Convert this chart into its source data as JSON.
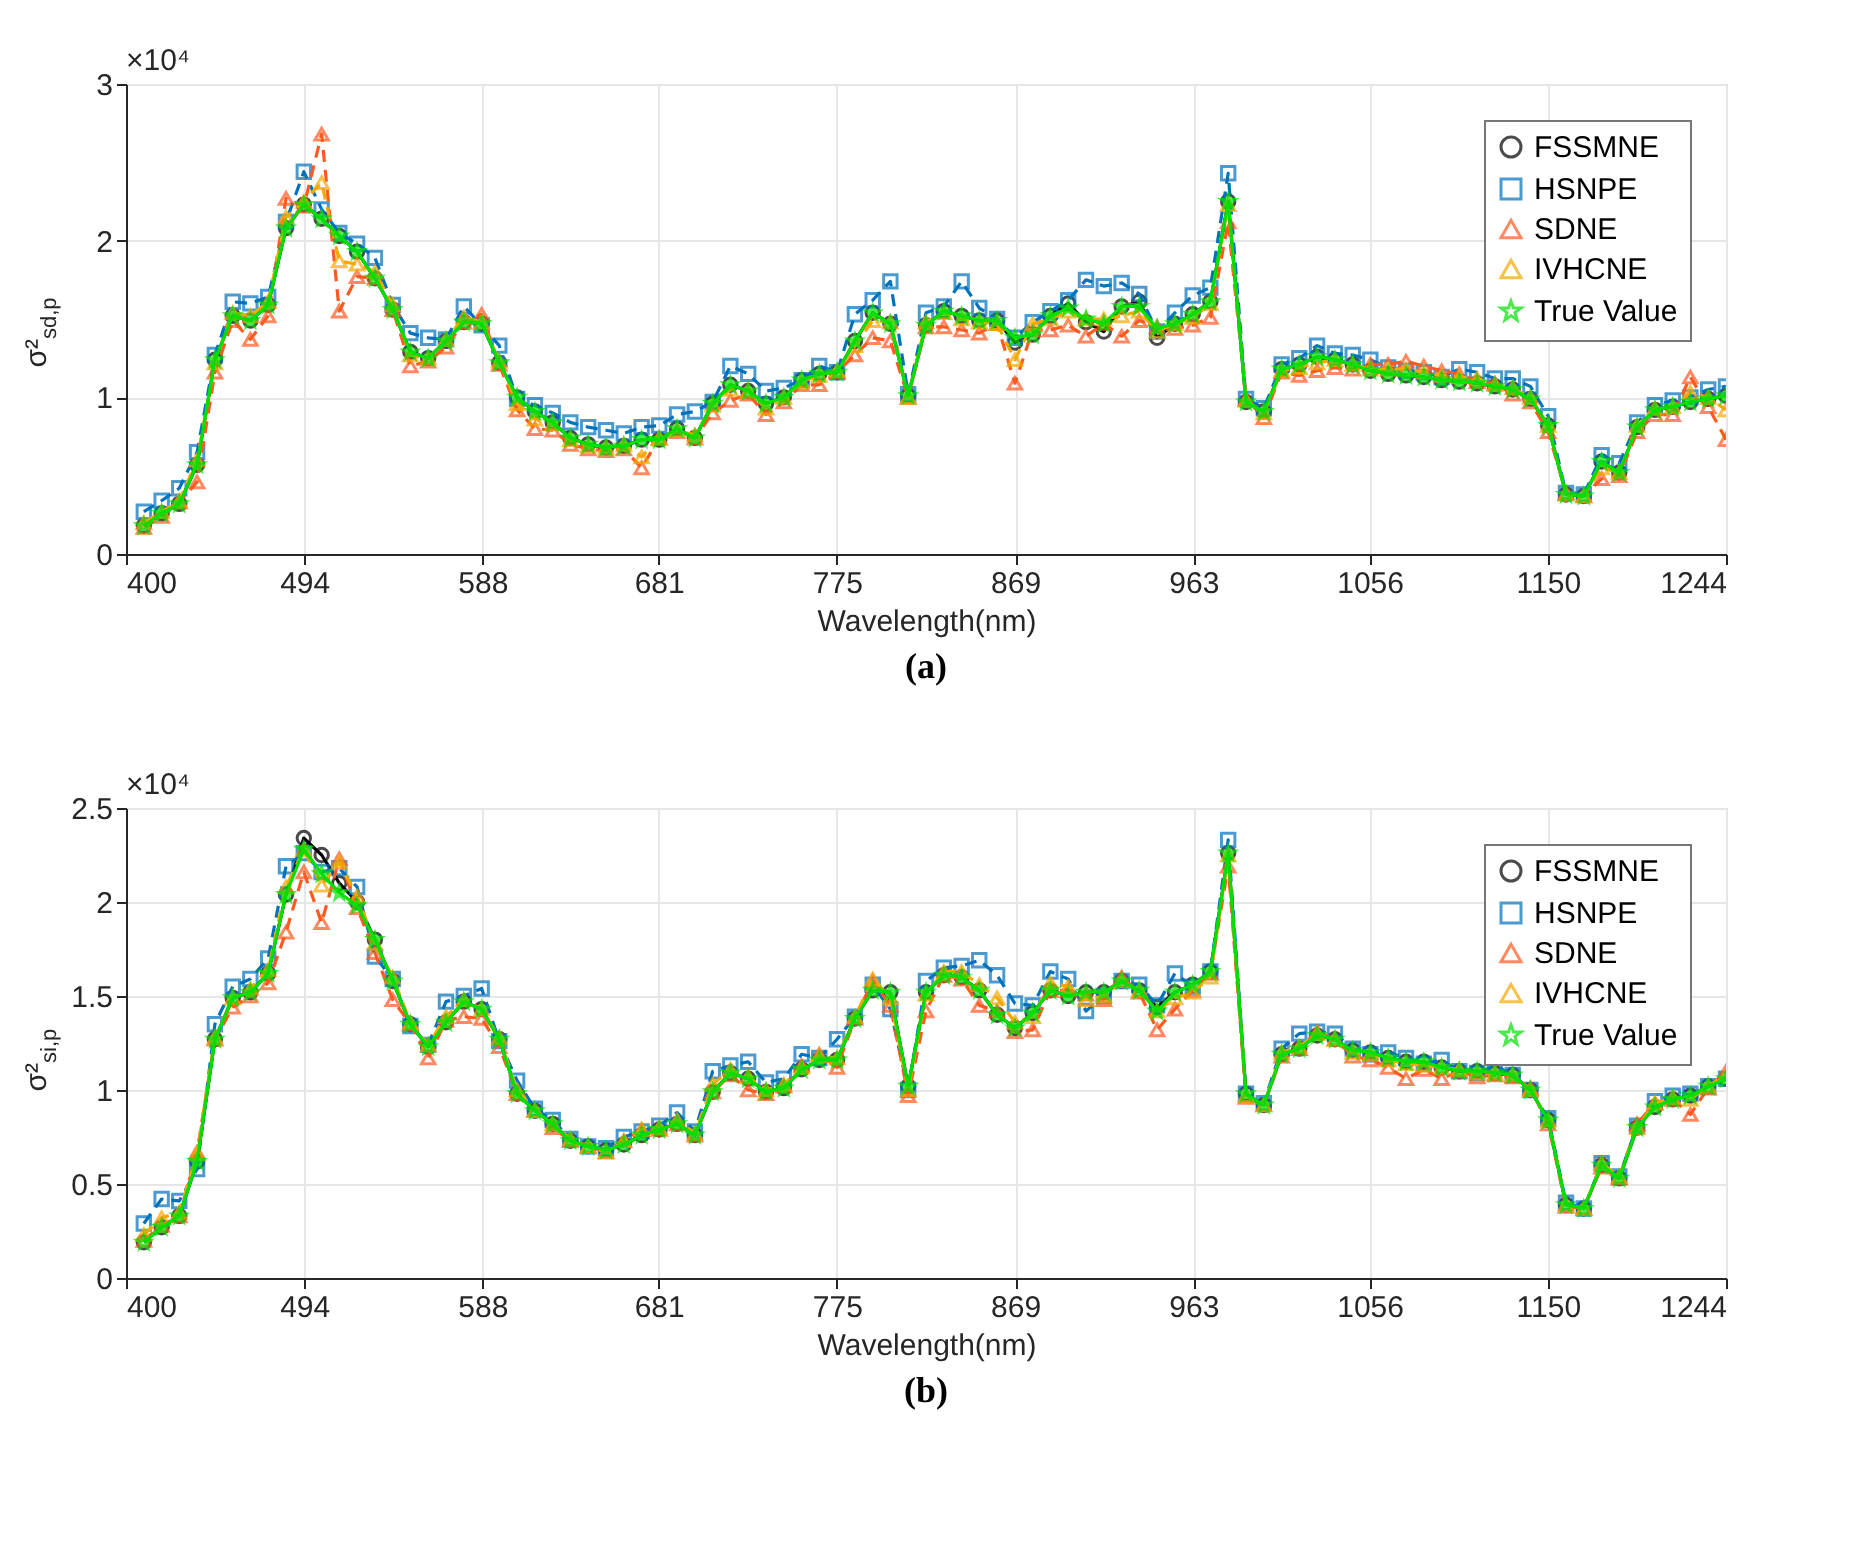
{
  "chart_data": [
    {
      "type": "line",
      "xlabel": "Wavelength(nm)",
      "ylabel": "σ²$_{sd,p}$",
      "annotations": [
        "×10⁴",
        "(a)"
      ],
      "xlim": [
        400,
        1244
      ],
      "xticks": [
        400,
        494,
        588,
        681,
        775,
        869,
        963,
        1056,
        1150,
        1244
      ],
      "ylim": [
        0,
        3
      ],
      "yticks": [
        0,
        1,
        2,
        3
      ],
      "grid": true,
      "legend": "top right",
      "x": [
        409.4,
        418.8,
        428.1,
        437.5,
        446.9,
        456.3,
        465.6,
        475.0,
        484.4,
        493.8,
        503.2,
        512.5,
        521.9,
        531.3,
        540.7,
        550.0,
        559.4,
        568.8,
        578.2,
        587.6,
        596.9,
        606.3,
        615.7,
        625.1,
        634.4,
        643.8,
        653.2,
        662.6,
        672.0,
        681.3,
        690.7,
        700.1,
        709.5,
        718.8,
        728.2,
        737.6,
        747.0,
        756.4,
        765.7,
        775.1,
        784.5,
        793.9,
        803.2,
        812.6,
        822.0,
        831.4,
        840.8,
        850.1,
        859.5,
        868.9,
        878.3,
        887.6,
        897.0,
        906.4,
        915.8,
        925.2,
        934.5,
        943.9,
        953.3,
        962.7,
        972.0,
        981.4,
        990.8,
        1000.2,
        1009.6,
        1018.9,
        1028.3,
        1037.7,
        1047.1,
        1056.4,
        1065.8,
        1075.2,
        1084.6,
        1094.0,
        1103.3,
        1112.7,
        1122.1,
        1131.5,
        1140.8,
        1150.2,
        1159.6,
        1169.0,
        1178.4,
        1187.7,
        1197.1,
        1206.5,
        1215.9,
        1225.2,
        1234.6,
        1244.0
      ],
      "series": [
        {
          "name": "FSSMNE",
          "color": "#000000",
          "marker": "circle",
          "line_style": "solid",
          "values": [
            0.18,
            0.26,
            0.32,
            0.57,
            1.24,
            1.52,
            1.49,
            1.59,
            2.08,
            2.23,
            2.14,
            2.03,
            1.93,
            1.76,
            1.56,
            1.29,
            1.25,
            1.36,
            1.48,
            1.47,
            1.22,
            1.0,
            0.91,
            0.84,
            0.74,
            0.7,
            0.68,
            0.69,
            0.73,
            0.73,
            0.8,
            0.74,
            0.96,
            1.08,
            1.04,
            0.96,
            1.0,
            1.11,
            1.15,
            1.16,
            1.36,
            1.54,
            1.47,
            1.01,
            1.46,
            1.55,
            1.52,
            1.49,
            1.49,
            1.35,
            1.4,
            1.52,
            1.6,
            1.48,
            1.42,
            1.58,
            1.61,
            1.38,
            1.47,
            1.53,
            1.61,
            2.25,
            0.97,
            0.91,
            1.18,
            1.21,
            1.26,
            1.24,
            1.21,
            1.17,
            1.15,
            1.14,
            1.13,
            1.11,
            1.1,
            1.09,
            1.07,
            1.05,
            0.99,
            0.82,
            0.38,
            0.37,
            0.59,
            0.52,
            0.81,
            0.92,
            0.94,
            0.97,
            0.99,
            1.01
          ]
        },
        {
          "name": "HSNPE",
          "color": "#0072bd",
          "marker": "square",
          "line_style": "dashed",
          "values": [
            0.27,
            0.34,
            0.42,
            0.65,
            1.27,
            1.61,
            1.6,
            1.64,
            2.12,
            2.44,
            2.2,
            2.05,
            1.98,
            1.89,
            1.59,
            1.41,
            1.38,
            1.37,
            1.58,
            1.46,
            1.33,
            0.99,
            0.95,
            0.9,
            0.84,
            0.81,
            0.79,
            0.77,
            0.81,
            0.82,
            0.89,
            0.91,
            0.97,
            1.2,
            1.15,
            1.04,
            1.06,
            1.11,
            1.2,
            1.16,
            1.53,
            1.62,
            1.74,
            1.02,
            1.54,
            1.58,
            1.74,
            1.57,
            1.5,
            1.38,
            1.48,
            1.55,
            1.62,
            1.75,
            1.71,
            1.73,
            1.66,
            1.42,
            1.54,
            1.65,
            1.7,
            2.43,
            0.99,
            0.93,
            1.21,
            1.25,
            1.33,
            1.28,
            1.27,
            1.24,
            1.19,
            1.17,
            1.16,
            1.13,
            1.18,
            1.16,
            1.12,
            1.12,
            1.07,
            0.88,
            0.39,
            0.38,
            0.63,
            0.58,
            0.84,
            0.95,
            0.98,
            1.0,
            1.05,
            1.07
          ]
        },
        {
          "name": "SDNE",
          "color": "#ff5a1f",
          "marker": "triangle",
          "line_style": "dashed",
          "values": [
            0.17,
            0.24,
            0.33,
            0.46,
            1.16,
            1.49,
            1.37,
            1.52,
            2.27,
            2.22,
            2.68,
            1.55,
            1.77,
            1.76,
            1.56,
            1.2,
            1.23,
            1.32,
            1.48,
            1.53,
            1.21,
            0.92,
            0.8,
            0.79,
            0.7,
            0.67,
            0.66,
            0.67,
            0.55,
            0.74,
            0.78,
            0.74,
            0.9,
            0.98,
            1.02,
            0.89,
            0.97,
            1.08,
            1.08,
            1.16,
            1.27,
            1.38,
            1.36,
            1.0,
            1.45,
            1.45,
            1.43,
            1.41,
            1.47,
            1.09,
            1.43,
            1.43,
            1.46,
            1.39,
            1.47,
            1.39,
            1.49,
            1.45,
            1.44,
            1.46,
            1.51,
            2.12,
            0.99,
            0.87,
            1.16,
            1.14,
            1.17,
            1.19,
            1.18,
            1.21,
            1.21,
            1.23,
            1.2,
            1.17,
            1.15,
            1.1,
            1.09,
            1.02,
            0.97,
            0.78,
            0.39,
            0.37,
            0.48,
            0.5,
            0.78,
            0.89,
            0.89,
            1.13,
            0.94,
            0.73
          ]
        },
        {
          "name": "IVHCNE",
          "color": "#f5a800",
          "marker": "triangle",
          "line_style": "dashed",
          "values": [
            0.2,
            0.27,
            0.34,
            0.6,
            1.22,
            1.54,
            1.52,
            1.61,
            2.15,
            2.25,
            2.37,
            1.87,
            1.85,
            1.8,
            1.59,
            1.27,
            1.25,
            1.37,
            1.51,
            1.48,
            1.23,
            0.96,
            0.86,
            0.83,
            0.73,
            0.69,
            0.68,
            0.7,
            0.62,
            0.74,
            0.79,
            0.76,
            0.95,
            1.05,
            1.04,
            0.93,
            1.0,
            1.1,
            1.14,
            1.17,
            1.33,
            1.49,
            1.48,
            1.0,
            1.48,
            1.54,
            1.5,
            1.48,
            1.47,
            1.24,
            1.47,
            1.5,
            1.55,
            1.5,
            1.5,
            1.52,
            1.55,
            1.42,
            1.47,
            1.51,
            1.6,
            2.23,
            0.98,
            0.9,
            1.17,
            1.19,
            1.22,
            1.24,
            1.21,
            1.18,
            1.18,
            1.18,
            1.16,
            1.14,
            1.13,
            1.12,
            1.08,
            1.06,
            1.0,
            0.82,
            0.38,
            0.37,
            0.55,
            0.52,
            0.82,
            0.93,
            0.94,
            1.03,
            1.0,
            0.92
          ]
        },
        {
          "name": "True Value",
          "color": "#00e000",
          "marker": "star",
          "line_style": "solid",
          "values": [
            0.18,
            0.26,
            0.32,
            0.57,
            1.24,
            1.52,
            1.49,
            1.59,
            2.08,
            2.23,
            2.14,
            2.03,
            1.93,
            1.76,
            1.56,
            1.29,
            1.25,
            1.36,
            1.48,
            1.47,
            1.22,
            1.0,
            0.91,
            0.84,
            0.74,
            0.7,
            0.68,
            0.69,
            0.73,
            0.73,
            0.8,
            0.74,
            0.96,
            1.08,
            1.04,
            0.96,
            1.0,
            1.11,
            1.15,
            1.16,
            1.36,
            1.54,
            1.47,
            1.01,
            1.46,
            1.55,
            1.52,
            1.49,
            1.49,
            1.38,
            1.4,
            1.52,
            1.57,
            1.5,
            1.47,
            1.58,
            1.58,
            1.44,
            1.47,
            1.53,
            1.61,
            2.25,
            0.97,
            0.91,
            1.18,
            1.21,
            1.26,
            1.24,
            1.21,
            1.17,
            1.15,
            1.14,
            1.13,
            1.11,
            1.1,
            1.09,
            1.07,
            1.05,
            0.99,
            0.82,
            0.38,
            0.37,
            0.59,
            0.52,
            0.81,
            0.92,
            0.94,
            0.97,
            0.99,
            1.01
          ]
        }
      ]
    },
    {
      "type": "line",
      "xlabel": "Wavelength(nm)",
      "ylabel": "σ²$_{si,p}$",
      "annotations": [
        "×10⁴",
        "(b)"
      ],
      "xlim": [
        400,
        1244
      ],
      "xticks": [
        400,
        494,
        588,
        681,
        775,
        869,
        963,
        1056,
        1150,
        1244
      ],
      "ylim": [
        0,
        2.5
      ],
      "yticks": [
        0,
        0.5,
        1,
        1.5,
        2,
        2.5
      ],
      "grid": true,
      "legend": "top right",
      "x": [
        409.4,
        418.8,
        428.1,
        437.5,
        446.9,
        456.3,
        465.6,
        475.0,
        484.4,
        493.8,
        503.2,
        512.5,
        521.9,
        531.3,
        540.7,
        550.0,
        559.4,
        568.8,
        578.2,
        587.6,
        596.9,
        606.3,
        615.7,
        625.1,
        634.4,
        643.8,
        653.2,
        662.6,
        672.0,
        681.3,
        690.7,
        700.1,
        709.5,
        718.8,
        728.2,
        737.6,
        747.0,
        756.4,
        765.7,
        775.1,
        784.5,
        793.9,
        803.2,
        812.6,
        822.0,
        831.4,
        840.8,
        850.1,
        859.5,
        868.9,
        878.3,
        887.6,
        897.0,
        906.4,
        915.8,
        925.2,
        934.5,
        943.9,
        953.3,
        962.7,
        972.0,
        981.4,
        990.8,
        1000.2,
        1009.6,
        1018.9,
        1028.3,
        1037.7,
        1047.1,
        1056.4,
        1065.8,
        1075.2,
        1084.6,
        1094.0,
        1103.3,
        1112.7,
        1122.1,
        1131.5,
        1140.8,
        1150.2,
        1159.6,
        1169.0,
        1178.4,
        1187.7,
        1197.1,
        1206.5,
        1215.9,
        1225.2,
        1234.6,
        1244.0
      ],
      "series": [
        {
          "name": "FSSMNE",
          "color": "#000000",
          "marker": "circle",
          "line_style": "solid",
          "values": [
            0.19,
            0.27,
            0.33,
            0.62,
            1.27,
            1.49,
            1.52,
            1.62,
            2.04,
            2.34,
            2.25,
            2.1,
            2.0,
            1.8,
            1.58,
            1.35,
            1.23,
            1.36,
            1.47,
            1.43,
            1.27,
            0.98,
            0.89,
            0.82,
            0.73,
            0.7,
            0.68,
            0.71,
            0.76,
            0.79,
            0.82,
            0.76,
            0.99,
            1.09,
            1.06,
            0.99,
            1.01,
            1.11,
            1.16,
            1.16,
            1.38,
            1.53,
            1.52,
            1.02,
            1.52,
            1.61,
            1.6,
            1.53,
            1.4,
            1.33,
            1.41,
            1.53,
            1.5,
            1.52,
            1.52,
            1.58,
            1.53,
            1.44,
            1.52,
            1.56,
            1.63,
            2.26,
            0.98,
            0.92,
            1.19,
            1.22,
            1.29,
            1.27,
            1.21,
            1.2,
            1.17,
            1.15,
            1.15,
            1.12,
            1.1,
            1.1,
            1.09,
            1.08,
            1.0,
            0.84,
            0.39,
            0.37,
            0.6,
            0.53,
            0.8,
            0.91,
            0.95,
            0.97,
            1.02,
            1.06
          ]
        },
        {
          "name": "HSNPE",
          "color": "#0072bd",
          "marker": "square",
          "line_style": "dashed",
          "values": [
            0.29,
            0.42,
            0.41,
            0.58,
            1.35,
            1.55,
            1.59,
            1.7,
            2.19,
            2.26,
            2.16,
            2.18,
            2.08,
            1.71,
            1.59,
            1.34,
            1.24,
            1.47,
            1.5,
            1.54,
            1.26,
            1.05,
            0.9,
            0.84,
            0.74,
            0.7,
            0.69,
            0.75,
            0.78,
            0.81,
            0.88,
            0.78,
            1.1,
            1.13,
            1.15,
            1.04,
            1.06,
            1.19,
            1.17,
            1.27,
            1.39,
            1.56,
            1.43,
            1.0,
            1.58,
            1.65,
            1.66,
            1.69,
            1.61,
            1.46,
            1.45,
            1.63,
            1.59,
            1.42,
            1.5,
            1.58,
            1.56,
            1.45,
            1.62,
            1.55,
            1.63,
            2.33,
            0.98,
            0.93,
            1.22,
            1.3,
            1.31,
            1.3,
            1.22,
            1.19,
            1.2,
            1.17,
            1.14,
            1.16,
            1.1,
            1.09,
            1.13,
            1.08,
            1.0,
            0.85,
            0.4,
            0.37,
            0.61,
            0.54,
            0.81,
            0.94,
            0.97,
            0.98,
            1.02,
            1.06
          ]
        },
        {
          "name": "SDNE",
          "color": "#ff5a1f",
          "marker": "triangle",
          "line_style": "dashed",
          "values": [
            0.2,
            0.28,
            0.33,
            0.67,
            1.27,
            1.44,
            1.5,
            1.57,
            1.84,
            2.16,
            1.89,
            2.23,
            1.97,
            1.73,
            1.48,
            1.35,
            1.17,
            1.37,
            1.39,
            1.38,
            1.23,
            0.98,
            0.89,
            0.8,
            0.73,
            0.7,
            0.67,
            0.73,
            0.79,
            0.79,
            0.82,
            0.76,
            0.99,
            1.08,
            1.0,
            0.98,
            1.02,
            1.13,
            1.19,
            1.12,
            1.38,
            1.58,
            1.45,
            0.97,
            1.42,
            1.61,
            1.59,
            1.45,
            1.42,
            1.31,
            1.32,
            1.53,
            1.53,
            1.51,
            1.48,
            1.6,
            1.52,
            1.32,
            1.43,
            1.53,
            1.62,
            2.19,
            0.96,
            0.92,
            1.18,
            1.22,
            1.31,
            1.27,
            1.18,
            1.16,
            1.12,
            1.06,
            1.11,
            1.06,
            1.1,
            1.07,
            1.08,
            1.07,
            1.01,
            0.82,
            0.38,
            0.37,
            0.59,
            0.53,
            0.82,
            0.93,
            0.95,
            0.87,
            1.01,
            1.1
          ]
        },
        {
          "name": "IVHCNE",
          "color": "#f5a800",
          "marker": "triangle",
          "line_style": "dashed",
          "values": [
            0.23,
            0.32,
            0.35,
            0.66,
            1.28,
            1.49,
            1.54,
            1.64,
            2.08,
            2.28,
            2.09,
            2.21,
            2.03,
            1.78,
            1.6,
            1.36,
            1.24,
            1.39,
            1.48,
            1.43,
            1.28,
            1.0,
            0.89,
            0.82,
            0.74,
            0.7,
            0.67,
            0.73,
            0.79,
            0.8,
            0.84,
            0.77,
            1.03,
            1.11,
            1.07,
            1.0,
            1.03,
            1.12,
            1.18,
            1.17,
            1.39,
            1.59,
            1.49,
            1.0,
            1.51,
            1.63,
            1.63,
            1.56,
            1.49,
            1.36,
            1.39,
            1.57,
            1.55,
            1.48,
            1.5,
            1.58,
            1.53,
            1.42,
            1.49,
            1.52,
            1.6,
            2.25,
            0.97,
            0.92,
            1.2,
            1.23,
            1.3,
            1.27,
            1.2,
            1.19,
            1.16,
            1.14,
            1.13,
            1.12,
            1.11,
            1.09,
            1.09,
            1.08,
            1.0,
            0.84,
            0.39,
            0.37,
            0.61,
            0.54,
            0.8,
            0.93,
            0.96,
            0.95,
            1.02,
            1.08
          ]
        },
        {
          "name": "True Value",
          "color": "#00e000",
          "marker": "star",
          "line_style": "solid",
          "values": [
            0.19,
            0.27,
            0.33,
            0.62,
            1.27,
            1.49,
            1.52,
            1.62,
            2.04,
            2.28,
            2.15,
            2.05,
            1.98,
            1.8,
            1.58,
            1.35,
            1.23,
            1.36,
            1.47,
            1.43,
            1.27,
            0.98,
            0.89,
            0.82,
            0.73,
            0.7,
            0.68,
            0.71,
            0.76,
            0.79,
            0.82,
            0.76,
            0.99,
            1.09,
            1.06,
            0.99,
            1.01,
            1.11,
            1.16,
            1.16,
            1.38,
            1.53,
            1.52,
            1.02,
            1.52,
            1.61,
            1.6,
            1.53,
            1.4,
            1.33,
            1.41,
            1.53,
            1.5,
            1.52,
            1.52,
            1.58,
            1.53,
            1.42,
            1.52,
            1.56,
            1.63,
            2.26,
            0.98,
            0.92,
            1.19,
            1.22,
            1.29,
            1.27,
            1.21,
            1.2,
            1.17,
            1.15,
            1.15,
            1.12,
            1.1,
            1.1,
            1.09,
            1.08,
            1.0,
            0.84,
            0.39,
            0.37,
            0.6,
            0.53,
            0.8,
            0.91,
            0.95,
            0.97,
            1.02,
            1.06
          ]
        }
      ]
    }
  ]
}
